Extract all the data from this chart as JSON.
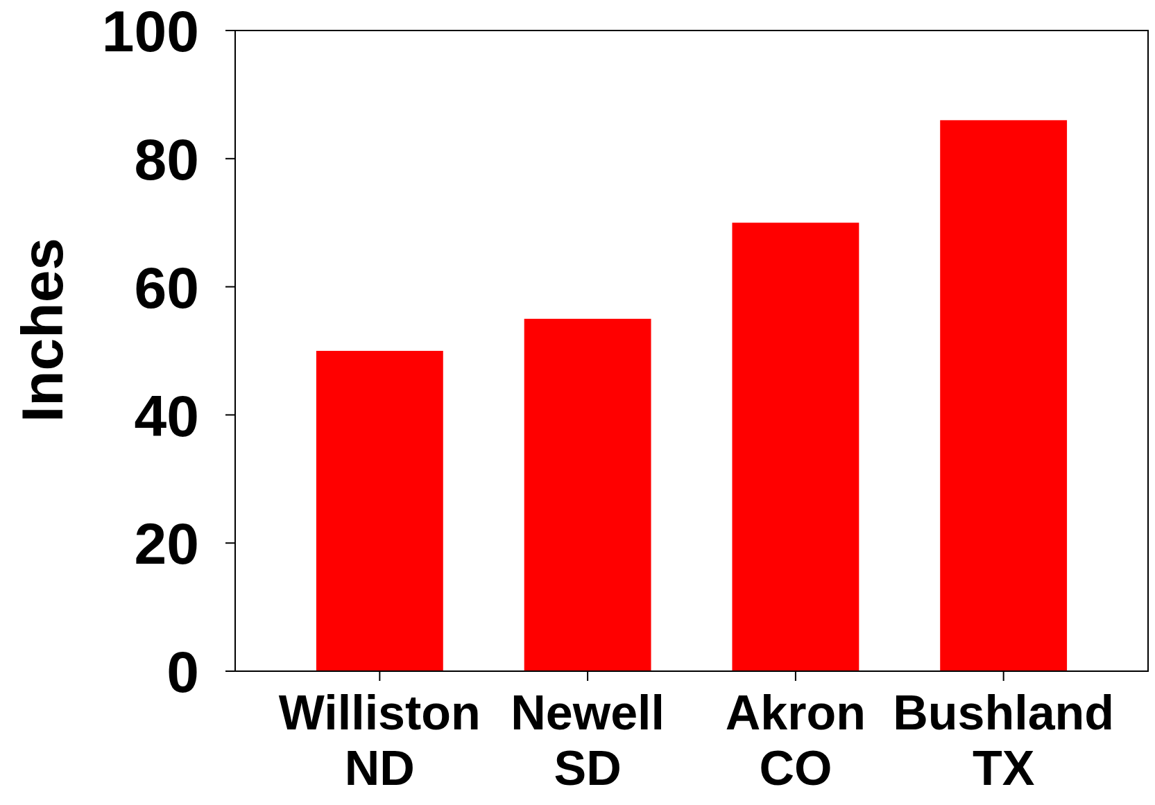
{
  "chart_data": {
    "type": "bar",
    "ylabel": "Inches",
    "categories": [
      "Williston\nND",
      "Newell\nSD",
      "Akron\nCO",
      "Bushland\nTX"
    ],
    "values": [
      50,
      55,
      70,
      86
    ],
    "color": "#ff0000",
    "ylim": [
      0,
      100
    ],
    "yticks": [
      0,
      20,
      40,
      60,
      80,
      100
    ],
    "grid": false
  }
}
